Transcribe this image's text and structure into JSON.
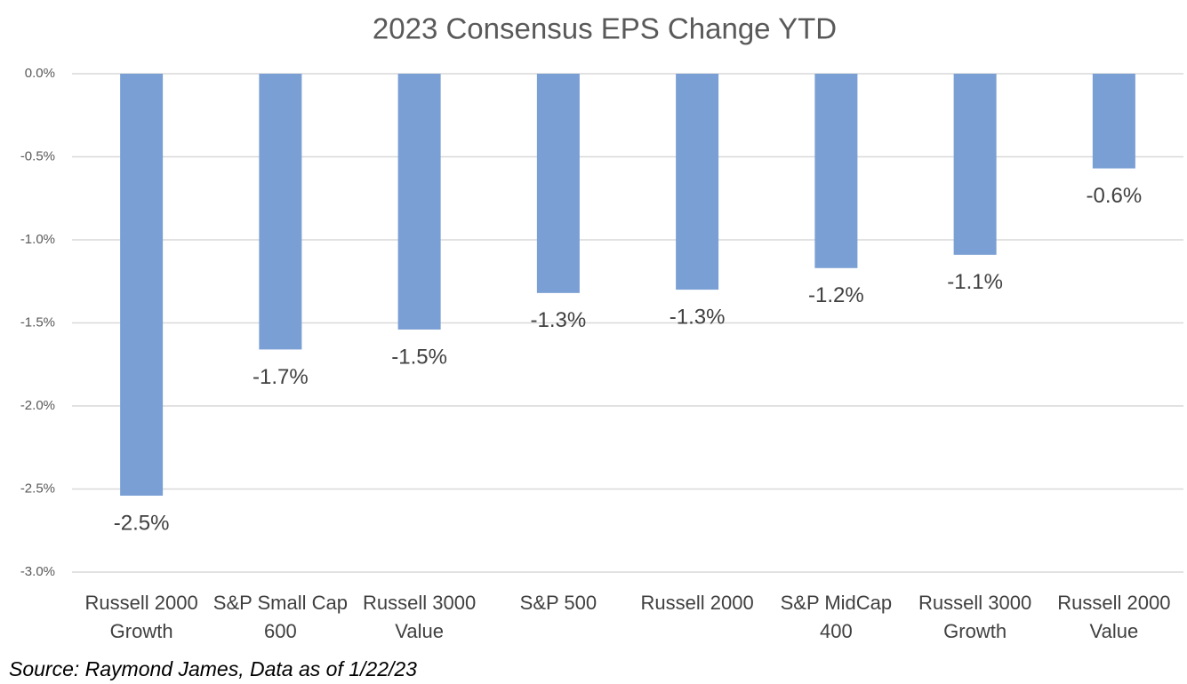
{
  "chart_data": {
    "type": "bar",
    "title": "2023 Consensus EPS Change YTD",
    "categories": [
      "Russell 2000 Growth",
      "S&P Small Cap 600",
      "Russell 3000 Value",
      "S&P 500",
      "Russell 2000",
      "S&P MidCap 400",
      "Russell 3000 Growth",
      "Russell 2000 Value"
    ],
    "values": [
      -2.54,
      -1.66,
      -1.54,
      -1.32,
      -1.3,
      -1.17,
      -1.09,
      -0.57
    ],
    "value_labels": [
      "-2.5%",
      "-1.7%",
      "-1.5%",
      "-1.3%",
      "-1.3%",
      "-1.2%",
      "-1.1%",
      "-0.6%"
    ],
    "color": "#7a9fd4",
    "ylim": [
      -3,
      0
    ],
    "yticks": [
      {
        "value": 0,
        "label": "0.0%"
      },
      {
        "value": -0.5,
        "label": "-0.5%"
      },
      {
        "value": -1,
        "label": "-1.0%"
      },
      {
        "value": -1.5,
        "label": "-1.5%"
      },
      {
        "value": -2,
        "label": "-2.0%"
      },
      {
        "value": -2.5,
        "label": "-2.5%"
      },
      {
        "value": -3,
        "label": "-3.0%"
      }
    ],
    "grid": true,
    "source": "Source: Raymond James, Data as of 1/22/23"
  }
}
